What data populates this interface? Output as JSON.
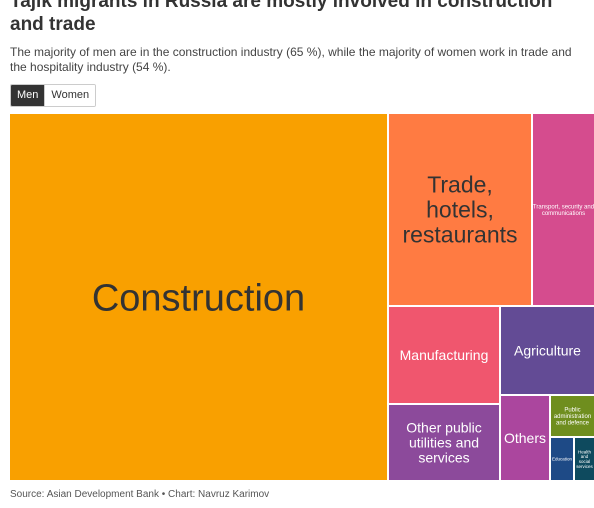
{
  "title": "Tajik migrants in Russia are mostly involved in construction and trade",
  "subtitle": "The majority of men are in the construction industry (65 %), while the majority of women work in trade and the hospitality industry (54 %).",
  "toggle": {
    "men_label": "Men",
    "women_label": "Women",
    "selected": "Men"
  },
  "source": "Source: Asian Development Bank • Chart: Navruz Karimov",
  "chart_data": {
    "type": "treemap",
    "selected_group": "Men",
    "unit": "%",
    "categories": [
      {
        "name": "Construction",
        "value": 65.1,
        "color": "#f9a000"
      },
      {
        "name": "Trade, hotels, restaurants",
        "value": 13.6,
        "color": "#ff7b42"
      },
      {
        "name": "Transport, security and communications",
        "value": 5.3,
        "color": "#d54c8e"
      },
      {
        "name": "Manufacturing",
        "value": 4.9,
        "color": "#f0566e"
      },
      {
        "name": "Agriculture",
        "value": 4.2,
        "color": "#634b95"
      },
      {
        "name": "Other public utilities and services",
        "value": 2.7,
        "color": "#8c4a9b"
      },
      {
        "name": "Others",
        "value": 1.4,
        "color": "#ab469e"
      },
      {
        "name": "Public administration and defence",
        "value": 1.0,
        "color": "#6f8e1e"
      },
      {
        "name": "Education",
        "value": 0.6,
        "color": "#1e4a86"
      },
      {
        "name": "Health and social services",
        "value": 0.6,
        "color": "#0e4a5e"
      }
    ]
  }
}
